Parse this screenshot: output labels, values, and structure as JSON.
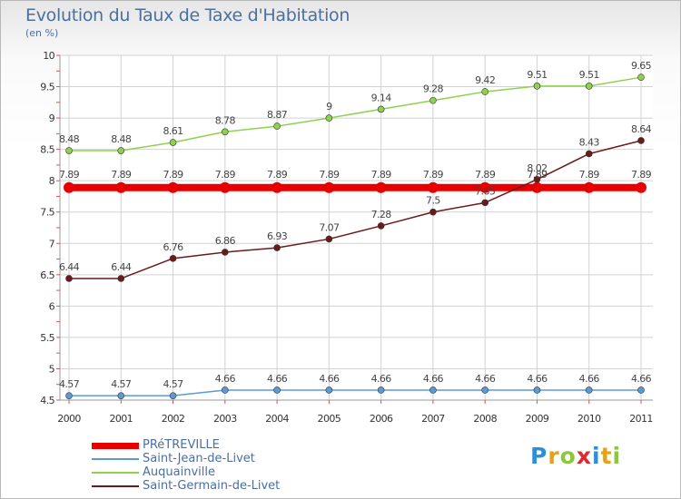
{
  "chart_data": {
    "type": "line",
    "title": "Evolution du Taux de Taxe d'Habitation",
    "subtitle": "(en %)",
    "x": [
      "2000",
      "2001",
      "2002",
      "2003",
      "2004",
      "2005",
      "2006",
      "2007",
      "2008",
      "2009",
      "2010",
      "2011"
    ],
    "ylim": [
      4.5,
      10
    ],
    "yticks": [
      "4.5",
      "5",
      "5.5",
      "6",
      "6.5",
      "7",
      "7.5",
      "8",
      "8.5",
      "9",
      "9.5",
      "10"
    ],
    "grid": true,
    "legend_position": "bottom-left",
    "series": [
      {
        "name": "PRéTREVILLE",
        "color": "#e80000",
        "values": [
          7.89,
          7.89,
          7.89,
          7.89,
          7.89,
          7.89,
          7.89,
          7.89,
          7.89,
          7.89,
          7.89,
          7.89
        ],
        "labels": [
          "7.89",
          "7.89",
          "7.89",
          "7.89",
          "7.89",
          "7.89",
          "7.89",
          "7.89",
          "7.89",
          "7.89",
          "7.89",
          "7.89"
        ]
      },
      {
        "name": "Saint-Jean-de-Livet",
        "color": "#5b9bd5",
        "values": [
          4.57,
          4.57,
          4.57,
          4.66,
          4.66,
          4.66,
          4.66,
          4.66,
          4.66,
          4.66,
          4.66,
          4.66
        ],
        "labels": [
          "4.57",
          "4.57",
          "4.57",
          "4.66",
          "4.66",
          "4.66",
          "4.66",
          "4.66",
          "4.66",
          "4.66",
          "4.66",
          "4.66"
        ]
      },
      {
        "name": "Auquainville",
        "color": "#8fd14f",
        "values": [
          8.48,
          8.48,
          8.61,
          8.78,
          8.87,
          9,
          9.14,
          9.28,
          9.42,
          9.51,
          9.51,
          9.65
        ],
        "labels": [
          "8.48",
          "8.48",
          "8.61",
          "8.78",
          "8.87",
          "9",
          "9.14",
          "9.28",
          "9.42",
          "9.51",
          "9.51",
          "9.65"
        ]
      },
      {
        "name": "Saint-Germain-de-Livet",
        "color": "#6b1a1a",
        "values": [
          6.44,
          6.44,
          6.76,
          6.86,
          6.93,
          7.07,
          7.28,
          7.5,
          7.65,
          8.02,
          8.43,
          8.64
        ],
        "labels": [
          "6.44",
          "6.44",
          "6.76",
          "6.86",
          "6.93",
          "7.07",
          "7.28",
          "7.5",
          "7.65",
          "8.02",
          "8.43",
          "8.64"
        ]
      }
    ]
  },
  "logo": {
    "letters": [
      "P",
      "r",
      "o",
      "x",
      "i",
      "t",
      "i"
    ],
    "colors": [
      "#2e8fd6",
      "#e3a21a",
      "#8cc63f",
      "#e0282e",
      "#2e8fd6",
      "#e3a21a",
      "#8cc63f"
    ]
  }
}
